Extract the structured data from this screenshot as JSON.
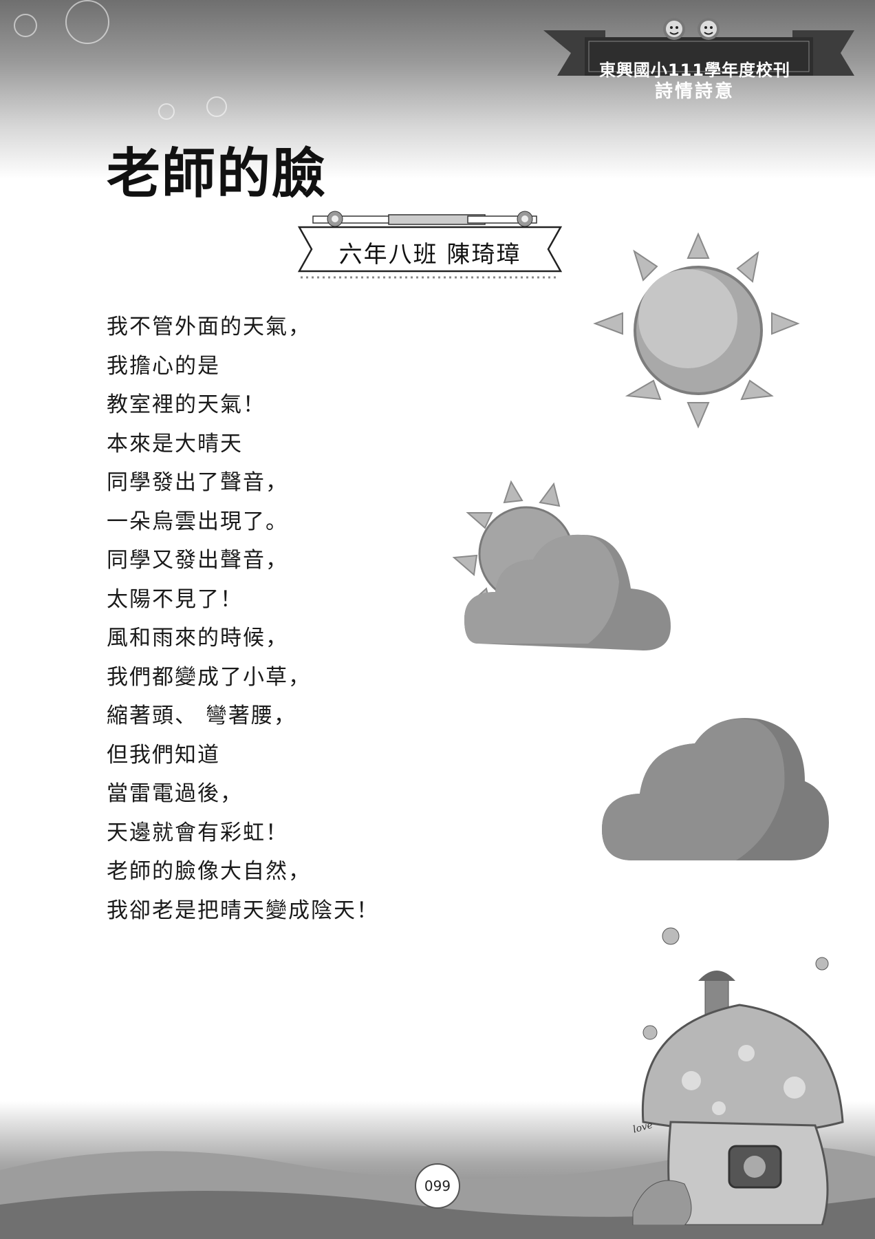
{
  "header": {
    "school_title": "東興國小111學年度校刊",
    "section_title": "詩情詩意"
  },
  "poem": {
    "title": "老師的臉",
    "author": "六年八班  陳琦璋",
    "lines": [
      "我不管外面的天氣，",
      "我擔心的是",
      "教室裡的天氣！",
      "本來是大晴天",
      "同學發出了聲音，",
      "一朵烏雲出現了。",
      "同學又發出聲音，",
      "太陽不見了！",
      "風和雨來的時候，",
      "我們都變成了小草，",
      "縮著頭、 彎著腰，",
      "但我們知道",
      "當雷電過後，",
      "天邊就會有彩虹！",
      "老師的臉像大自然，",
      "我卻老是把晴天變成陰天！"
    ]
  },
  "decor": {
    "mushroom_sign": "love"
  },
  "footer": {
    "page_number": "099"
  }
}
